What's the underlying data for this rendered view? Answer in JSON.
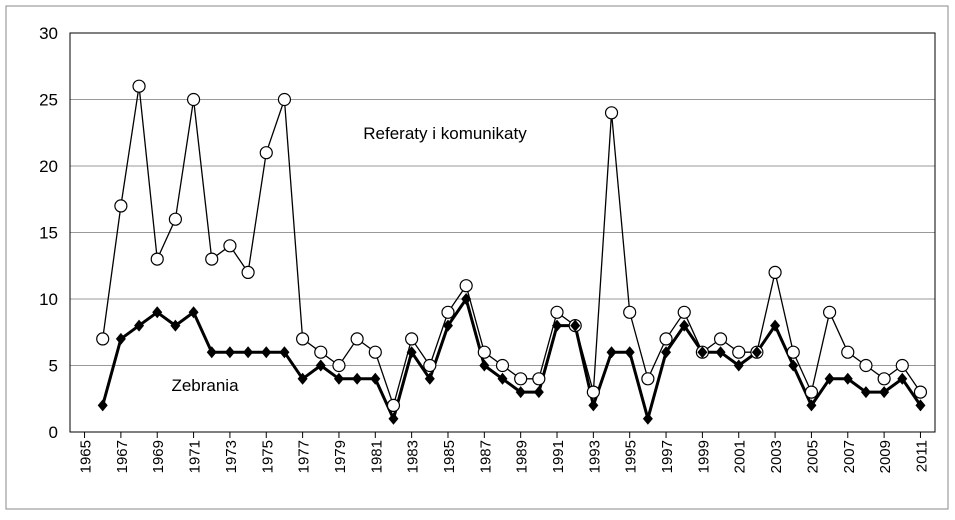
{
  "chart_data": {
    "type": "line",
    "x": [
      1966,
      1967,
      1968,
      1969,
      1970,
      1971,
      1972,
      1973,
      1974,
      1975,
      1976,
      1977,
      1978,
      1979,
      1980,
      1981,
      1982,
      1983,
      1984,
      1985,
      1986,
      1987,
      1988,
      1989,
      1990,
      1991,
      1992,
      1993,
      1994,
      1995,
      1996,
      1997,
      1998,
      1999,
      2000,
      2001,
      2002,
      2003,
      2004,
      2005,
      2006,
      2007,
      2008,
      2009,
      2010,
      2011
    ],
    "series": [
      {
        "name": "Referaty i komunikaty",
        "color": "#000000",
        "marker": "circle",
        "values": [
          7,
          17,
          26,
          13,
          16,
          25,
          13,
          14,
          12,
          21,
          25,
          7,
          6,
          5,
          7,
          6,
          2,
          7,
          5,
          9,
          11,
          6,
          5,
          4,
          4,
          9,
          8,
          3,
          24,
          9,
          4,
          7,
          9,
          6,
          7,
          6,
          6,
          12,
          6,
          3,
          9,
          6,
          5,
          4,
          5,
          3
        ]
      },
      {
        "name": "Zebrania",
        "color": "#000000",
        "marker": "diamond",
        "values": [
          2,
          7,
          8,
          9,
          8,
          9,
          6,
          6,
          6,
          6,
          6,
          4,
          5,
          4,
          4,
          4,
          1,
          6,
          4,
          8,
          10,
          5,
          4,
          3,
          3,
          8,
          8,
          2,
          6,
          6,
          1,
          6,
          8,
          6,
          6,
          5,
          6,
          8,
          5,
          2,
          4,
          4,
          3,
          3,
          4,
          2
        ]
      }
    ],
    "xlim": [
      1964.2,
      2011.8
    ],
    "xticks": [
      1965,
      1967,
      1969,
      1971,
      1973,
      1975,
      1977,
      1979,
      1981,
      1983,
      1985,
      1987,
      1989,
      1991,
      1993,
      1995,
      1997,
      1999,
      2001,
      2003,
      2005,
      2007,
      2009,
      2011
    ],
    "ylim": [
      0,
      30
    ],
    "yticks": [
      0,
      5,
      10,
      15,
      20,
      25,
      30
    ],
    "grid": true
  }
}
